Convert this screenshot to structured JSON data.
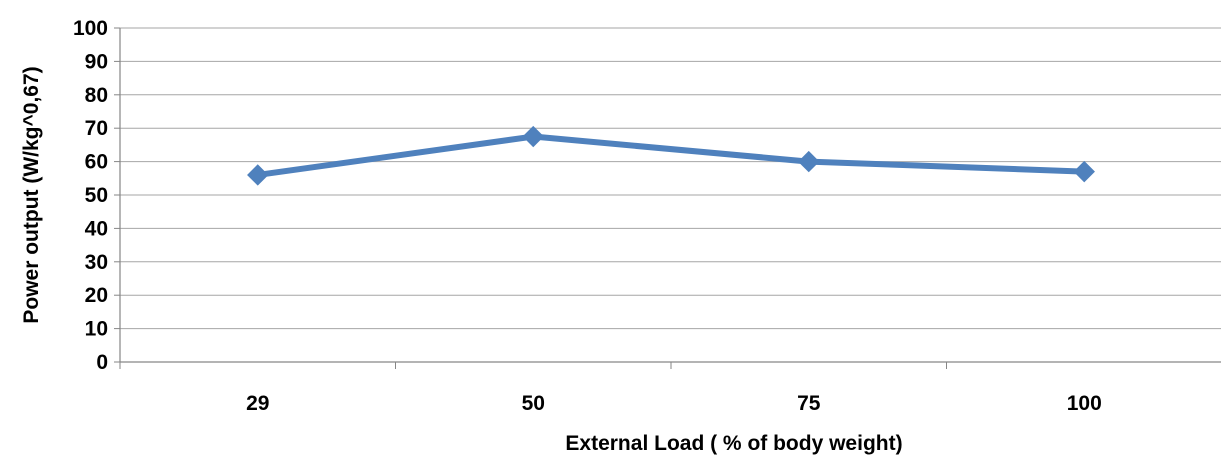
{
  "chart_data": {
    "type": "line",
    "categories": [
      "29",
      "50",
      "75",
      "100"
    ],
    "series": [
      {
        "values": [
          56,
          67.5,
          60,
          57
        ],
        "color": "#4F81BD",
        "marker": "diamond"
      }
    ],
    "title": "",
    "xlabel": "External Load ( % of  body weight)",
    "ylabel": "Power output (W/kg^0,67)",
    "ylim": [
      0,
      100
    ],
    "yticks": [
      0,
      10,
      20,
      30,
      40,
      50,
      60,
      70,
      80,
      90,
      100
    ],
    "grid": true,
    "legend": "none",
    "colors": {
      "gridline": "#a6a6a6",
      "axis": "#868686"
    }
  }
}
